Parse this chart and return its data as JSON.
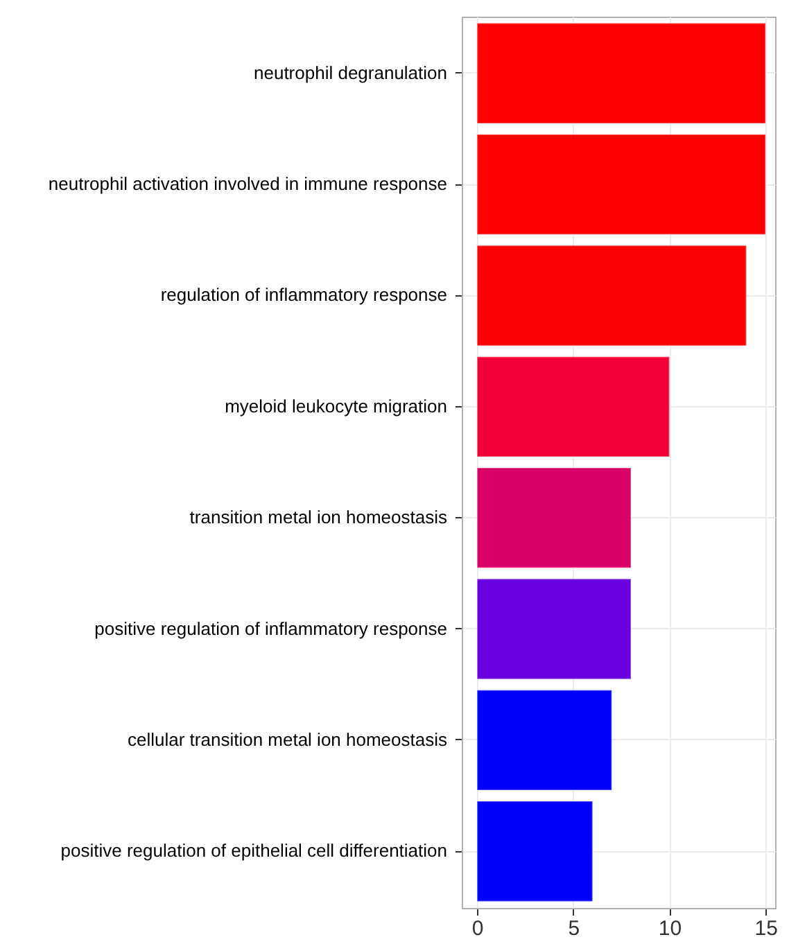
{
  "chart_data": {
    "type": "bar",
    "orientation": "horizontal",
    "categories": [
      "neutrophil degranulation",
      "neutrophil activation involved in immune response",
      "regulation of inflammatory response",
      "myeloid leukocyte migration",
      "transition metal ion homeostasis",
      "positive regulation of inflammatory response",
      "cellular transition metal ion homeostasis",
      "positive regulation of epithelial cell differentiation"
    ],
    "values": [
      15,
      15,
      14,
      10,
      8,
      8,
      7,
      6
    ],
    "colors": [
      "#ff0000",
      "#ff0000",
      "#fd0004",
      "#f20038",
      "#da0068",
      "#6a00e0",
      "#0000ff",
      "#0000ff"
    ],
    "xlim": [
      -0.8,
      15.5
    ],
    "xticks": [
      0,
      5,
      10,
      15
    ],
    "grid": true
  }
}
